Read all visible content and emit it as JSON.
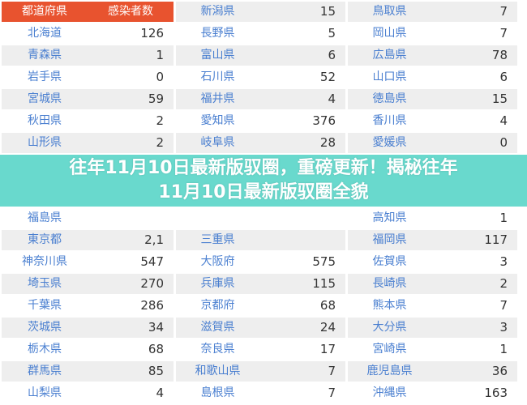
{
  "colors": {
    "header": "#e8532f",
    "link": "#4a7fd0",
    "stripe": "#eeeeee",
    "banner": "#54d4c6"
  },
  "table": {
    "headers": [
      "都道府県",
      "感染者数"
    ],
    "rows": [
      [
        [
          "新潟県",
          "15"
        ],
        [
          "鳥取県",
          "7"
        ]
      ],
      [
        [
          "北海道",
          "126"
        ],
        [
          "長野県",
          "5"
        ],
        [
          "岡山県",
          "7"
        ]
      ],
      [
        [
          "青森県",
          "1"
        ],
        [
          "富山県",
          "6"
        ],
        [
          "広島県",
          "78"
        ]
      ],
      [
        [
          "岩手県",
          "0"
        ],
        [
          "石川県",
          "52"
        ],
        [
          "山口県",
          "6"
        ]
      ],
      [
        [
          "宮城県",
          "59"
        ],
        [
          "福井県",
          "4"
        ],
        [
          "徳島県",
          "15"
        ]
      ],
      [
        [
          "秋田県",
          "2"
        ],
        [
          "愛知県",
          "376"
        ],
        [
          "香川県",
          "4"
        ]
      ],
      [
        [
          "山形県",
          "2"
        ],
        [
          "岐阜県",
          "28"
        ],
        [
          "愛媛県",
          "0"
        ]
      ],
      [
        [
          "福島県",
          ""
        ],
        [
          "",
          ""
        ],
        [
          "高知県",
          "1"
        ]
      ],
      [
        [
          "東京都",
          "2,1"
        ],
        [
          "三重県",
          ""
        ],
        [
          "福岡県",
          "117"
        ]
      ],
      [
        [
          "神奈川県",
          "547"
        ],
        [
          "大阪府",
          "575"
        ],
        [
          "佐賀県",
          "3"
        ]
      ],
      [
        [
          "埼玉県",
          "270"
        ],
        [
          "兵庫県",
          "115"
        ],
        [
          "長崎県",
          "2"
        ]
      ],
      [
        [
          "千葉県",
          "286"
        ],
        [
          "京都府",
          "68"
        ],
        [
          "熊本県",
          "7"
        ]
      ],
      [
        [
          "茨城県",
          "34"
        ],
        [
          "滋賀県",
          "24"
        ],
        [
          "大分県",
          "3"
        ]
      ],
      [
        [
          "栃木県",
          "68"
        ],
        [
          "奈良県",
          "17"
        ],
        [
          "宮崎県",
          "1"
        ]
      ],
      [
        [
          "群馬県",
          "85"
        ],
        [
          "和歌山県",
          "7"
        ],
        [
          "鹿児島県",
          "36"
        ]
      ],
      [
        [
          "山梨県",
          "4"
        ],
        [
          "島根県",
          "7"
        ],
        [
          "沖縄県",
          "163"
        ]
      ]
    ]
  },
  "banner": {
    "line1": "往年11月10日最新版驭圈，重磅更新！揭秘往年",
    "line2": "11月10日最新版驭圈全貌"
  }
}
